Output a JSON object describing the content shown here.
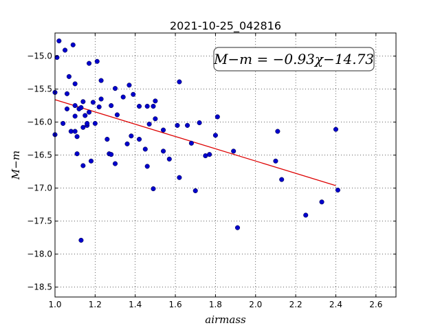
{
  "chart_data": {
    "type": "scatter",
    "title": "2021-10-25_042816",
    "xlabel": "airmass",
    "ylabel": "M−m",
    "xlim": [
      1.0,
      2.7
    ],
    "ylim": [
      -18.65,
      -14.65
    ],
    "y_inverted": true,
    "grid": true,
    "xticks": [
      1.0,
      1.2,
      1.4,
      1.6,
      1.8,
      2.0,
      2.2,
      2.4,
      2.6
    ],
    "xtick_labels": [
      "1.0",
      "1.2",
      "1.4",
      "1.6",
      "1.8",
      "2.0",
      "2.2",
      "2.4",
      "2.6"
    ],
    "yticks": [
      -15.0,
      -15.5,
      -16.0,
      -16.5,
      -17.0,
      -17.5,
      -18.0,
      -18.5
    ],
    "ytick_labels": [
      "−15.0",
      "−15.5",
      "−16.0",
      "−16.5",
      "−17.0",
      "−17.5",
      "−18.0",
      "−18.5"
    ],
    "point_color": "#0000cc",
    "line_color": "#dd0000",
    "annotation": "M−m = −0.93χ−14.73",
    "fit": {
      "slope": -0.93,
      "intercept": -14.73,
      "x_range": [
        1.0,
        2.4
      ]
    },
    "series": [
      {
        "points": [
          [
            1.0,
            -15.55
          ],
          [
            1.0,
            -16.19
          ],
          [
            1.01,
            -15.02
          ],
          [
            1.02,
            -14.77
          ],
          [
            1.04,
            -16.02
          ],
          [
            1.05,
            -14.91
          ],
          [
            1.06,
            -15.57
          ],
          [
            1.06,
            -15.8
          ],
          [
            1.07,
            -15.31
          ],
          [
            1.08,
            -16.14
          ],
          [
            1.09,
            -14.83
          ],
          [
            1.1,
            -15.75
          ],
          [
            1.1,
            -15.42
          ],
          [
            1.1,
            -15.91
          ],
          [
            1.1,
            -16.14
          ],
          [
            1.11,
            -16.48
          ],
          [
            1.11,
            -16.22
          ],
          [
            1.12,
            -15.8
          ],
          [
            1.13,
            -15.78
          ],
          [
            1.13,
            -17.79
          ],
          [
            1.14,
            -15.69
          ],
          [
            1.14,
            -16.08
          ],
          [
            1.14,
            -16.66
          ],
          [
            1.15,
            -15.9
          ],
          [
            1.16,
            -16.05
          ],
          [
            1.16,
            -16.02
          ],
          [
            1.17,
            -15.11
          ],
          [
            1.17,
            -15.85
          ],
          [
            1.18,
            -16.59
          ],
          [
            1.19,
            -15.7
          ],
          [
            1.2,
            -16.02
          ],
          [
            1.21,
            -15.08
          ],
          [
            1.22,
            -15.77
          ],
          [
            1.23,
            -15.37
          ],
          [
            1.23,
            -15.65
          ],
          [
            1.26,
            -16.26
          ],
          [
            1.27,
            -16.48
          ],
          [
            1.28,
            -16.49
          ],
          [
            1.28,
            -15.75
          ],
          [
            1.3,
            -15.49
          ],
          [
            1.3,
            -16.63
          ],
          [
            1.31,
            -15.89
          ],
          [
            1.34,
            -15.62
          ],
          [
            1.36,
            -16.33
          ],
          [
            1.37,
            -15.44
          ],
          [
            1.38,
            -16.21
          ],
          [
            1.39,
            -15.58
          ],
          [
            1.42,
            -15.76
          ],
          [
            1.42,
            -16.26
          ],
          [
            1.45,
            -16.41
          ],
          [
            1.46,
            -15.76
          ],
          [
            1.46,
            -16.67
          ],
          [
            1.47,
            -16.03
          ],
          [
            1.49,
            -15.76
          ],
          [
            1.49,
            -17.01
          ],
          [
            1.5,
            -15.95
          ],
          [
            1.5,
            -15.68
          ],
          [
            1.54,
            -16.12
          ],
          [
            1.54,
            -16.44
          ],
          [
            1.57,
            -16.56
          ],
          [
            1.61,
            -16.05
          ],
          [
            1.62,
            -15.39
          ],
          [
            1.62,
            -16.84
          ],
          [
            1.66,
            -16.05
          ],
          [
            1.68,
            -16.32
          ],
          [
            1.7,
            -17.04
          ],
          [
            1.72,
            -16.01
          ],
          [
            1.75,
            -16.51
          ],
          [
            1.77,
            -16.49
          ],
          [
            1.8,
            -16.2
          ],
          [
            1.81,
            -15.92
          ],
          [
            1.89,
            -16.44
          ],
          [
            1.91,
            -17.6
          ],
          [
            2.1,
            -16.59
          ],
          [
            2.11,
            -16.14
          ],
          [
            2.13,
            -16.87
          ],
          [
            2.25,
            -17.41
          ],
          [
            2.33,
            -17.21
          ],
          [
            2.4,
            -16.11
          ],
          [
            2.41,
            -17.03
          ]
        ]
      }
    ]
  }
}
